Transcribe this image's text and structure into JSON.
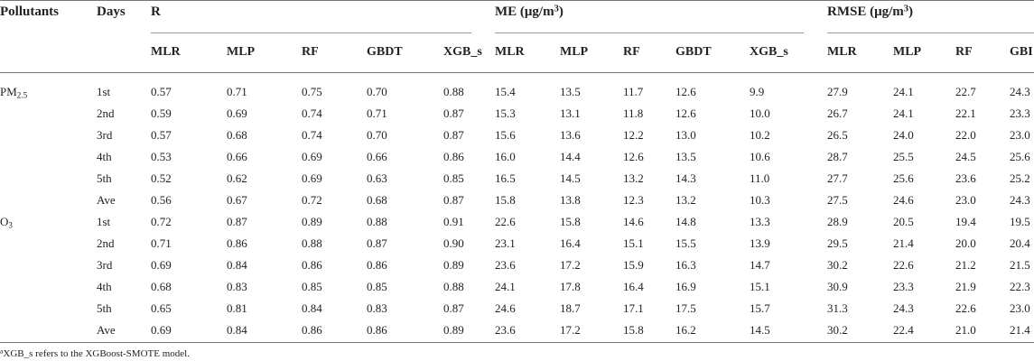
{
  "header": {
    "pollutants": "Pollutants",
    "days": "Days",
    "groups": [
      {
        "label": "R",
        "unit": "",
        "unit_sup": ""
      },
      {
        "label": "ME",
        "unit": "(μg/m",
        "unit_sup": "3",
        "unit_end": ")"
      },
      {
        "label": "RMSE",
        "unit": "(μg/m",
        "unit_sup": "3",
        "unit_end": ")"
      }
    ],
    "models": [
      "MLR",
      "MLP",
      "RF",
      "GBDT",
      "XGB_s",
      "MLR",
      "MLP",
      "RF",
      "GBDT",
      "XGB_s",
      "MLR",
      "MLP",
      "RF",
      "GBI"
    ]
  },
  "pollutants": [
    {
      "name": "PM",
      "sub": "2.5"
    },
    {
      "name": "O",
      "sub": "3"
    }
  ],
  "rows": [
    {
      "day": "1st",
      "values": [
        "0.57",
        "0.71",
        "0.75",
        "0.70",
        "0.88",
        "15.4",
        "13.5",
        "11.7",
        "12.6",
        "9.9",
        "27.9",
        "24.1",
        "22.7",
        "24.3"
      ]
    },
    {
      "day": "2nd",
      "values": [
        "0.59",
        "0.69",
        "0.74",
        "0.71",
        "0.87",
        "15.3",
        "13.1",
        "11.8",
        "12.6",
        "10.0",
        "26.7",
        "24.1",
        "22.1",
        "23.3"
      ]
    },
    {
      "day": "3rd",
      "values": [
        "0.57",
        "0.68",
        "0.74",
        "0.70",
        "0.87",
        "15.6",
        "13.6",
        "12.2",
        "13.0",
        "10.2",
        "26.5",
        "24.0",
        "22.0",
        "23.0"
      ]
    },
    {
      "day": "4th",
      "values": [
        "0.53",
        "0.66",
        "0.69",
        "0.66",
        "0.86",
        "16.0",
        "14.4",
        "12.6",
        "13.5",
        "10.6",
        "28.7",
        "25.5",
        "24.5",
        "25.6"
      ]
    },
    {
      "day": "5th",
      "values": [
        "0.52",
        "0.62",
        "0.69",
        "0.63",
        "0.85",
        "16.5",
        "14.5",
        "13.2",
        "14.3",
        "11.0",
        "27.7",
        "25.6",
        "23.6",
        "25.2"
      ]
    },
    {
      "day": "Ave",
      "values": [
        "0.56",
        "0.67",
        "0.72",
        "0.68",
        "0.87",
        "15.8",
        "13.8",
        "12.3",
        "13.2",
        "10.3",
        "27.5",
        "24.6",
        "23.0",
        "24.3"
      ]
    },
    {
      "day": "1st",
      "values": [
        "0.72",
        "0.87",
        "0.89",
        "0.88",
        "0.91",
        "22.6",
        "15.8",
        "14.6",
        "14.8",
        "13.3",
        "28.9",
        "20.5",
        "19.4",
        "19.5"
      ]
    },
    {
      "day": "2nd",
      "values": [
        "0.71",
        "0.86",
        "0.88",
        "0.87",
        "0.90",
        "23.1",
        "16.4",
        "15.1",
        "15.5",
        "13.9",
        "29.5",
        "21.4",
        "20.0",
        "20.4"
      ]
    },
    {
      "day": "3rd",
      "values": [
        "0.69",
        "0.84",
        "0.86",
        "0.86",
        "0.89",
        "23.6",
        "17.2",
        "15.9",
        "16.3",
        "14.7",
        "30.2",
        "22.6",
        "21.2",
        "21.5"
      ]
    },
    {
      "day": "4th",
      "values": [
        "0.68",
        "0.83",
        "0.85",
        "0.85",
        "0.88",
        "24.1",
        "17.8",
        "16.4",
        "16.9",
        "15.1",
        "30.9",
        "23.3",
        "21.9",
        "22.3"
      ]
    },
    {
      "day": "5th",
      "values": [
        "0.65",
        "0.81",
        "0.84",
        "0.83",
        "0.87",
        "24.6",
        "18.7",
        "17.1",
        "17.5",
        "15.7",
        "31.3",
        "24.3",
        "22.6",
        "23.0"
      ]
    },
    {
      "day": "Ave",
      "values": [
        "0.69",
        "0.84",
        "0.86",
        "0.86",
        "0.89",
        "23.6",
        "17.2",
        "15.8",
        "16.2",
        "14.5",
        "30.2",
        "22.4",
        "21.0",
        "21.4"
      ]
    }
  ],
  "footnote": {
    "marker": "a",
    "text": "XGB_s refers to the XGBoost-SMOTE model."
  }
}
